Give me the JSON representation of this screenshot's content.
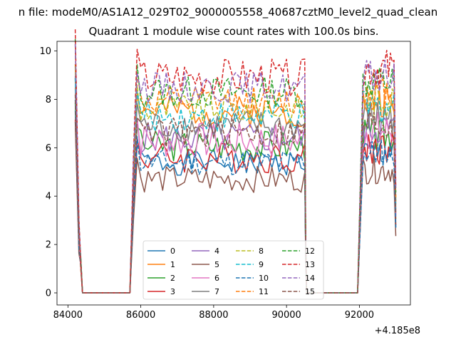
{
  "chart_data": {
    "type": "line",
    "suptitle": "n file: modeM0/AS1A12_029T02_9000005558_40687cztM0_level2_quad_clean",
    "title": "Quadrant 1 module wise count rates with 100.0s bins.",
    "xlabel": "",
    "ylabel": "",
    "x_offset_label": "+4.185e8",
    "xlim": [
      83700,
      93400
    ],
    "ylim": [
      -0.5,
      10.4
    ],
    "xticks": [
      "84000",
      "86000",
      "88000",
      "90000",
      "92000"
    ],
    "yticks": [
      "0",
      "2",
      "4",
      "6",
      "8",
      "10"
    ],
    "grid": false,
    "legend_placement": "lower-center",
    "segments": {
      "t1_start": 84200,
      "t1_end": 84350,
      "zero_start": 84400,
      "zero_end": 85700,
      "t2_start": 85800,
      "t2_end": 90500,
      "zero2_start": 90550,
      "zero2_end": 92000,
      "t3_start": 92100,
      "t3_end": 93000
    },
    "series": [
      {
        "name": "0",
        "color": "#1f77b4",
        "dash": false,
        "level": 5.4,
        "amp": 0.25,
        "seed": 1
      },
      {
        "name": "1",
        "color": "#ff7f0e",
        "dash": false,
        "level": 7.5,
        "amp": 0.3,
        "seed": 2
      },
      {
        "name": "2",
        "color": "#2ca02c",
        "dash": false,
        "level": 6.1,
        "amp": 0.3,
        "seed": 3
      },
      {
        "name": "3",
        "color": "#d62728",
        "dash": false,
        "level": 5.6,
        "amp": 0.3,
        "seed": 4
      },
      {
        "name": "4",
        "color": "#9467bd",
        "dash": false,
        "level": 6.4,
        "amp": 0.3,
        "seed": 5
      },
      {
        "name": "5",
        "color": "#8c564b",
        "dash": false,
        "level": 4.7,
        "amp": 0.25,
        "seed": 6
      },
      {
        "name": "6",
        "color": "#e377c2",
        "dash": false,
        "level": 6.3,
        "amp": 0.35,
        "seed": 7
      },
      {
        "name": "7",
        "color": "#7f7f7f",
        "dash": false,
        "level": 6.9,
        "amp": 0.3,
        "seed": 8
      },
      {
        "name": "8",
        "color": "#bcbd22",
        "dash": true,
        "level": 7.6,
        "amp": 0.3,
        "seed": 9
      },
      {
        "name": "9",
        "color": "#17becf",
        "dash": true,
        "level": 7.3,
        "amp": 0.3,
        "seed": 10
      },
      {
        "name": "10",
        "color": "#1f77b4",
        "dash": true,
        "level": 5.4,
        "amp": 0.25,
        "seed": 11
      },
      {
        "name": "11",
        "color": "#ff7f0e",
        "dash": true,
        "level": 7.9,
        "amp": 0.3,
        "seed": 12
      },
      {
        "name": "12",
        "color": "#2ca02c",
        "dash": true,
        "level": 8.3,
        "amp": 0.3,
        "seed": 13
      },
      {
        "name": "13",
        "color": "#d62728",
        "dash": true,
        "level": 8.9,
        "amp": 0.35,
        "seed": 14
      },
      {
        "name": "14",
        "color": "#9467bd",
        "dash": true,
        "level": 8.5,
        "amp": 0.3,
        "seed": 15
      },
      {
        "name": "15",
        "color": "#8c564b",
        "dash": true,
        "level": 6.6,
        "amp": 0.3,
        "seed": 16
      }
    ]
  }
}
